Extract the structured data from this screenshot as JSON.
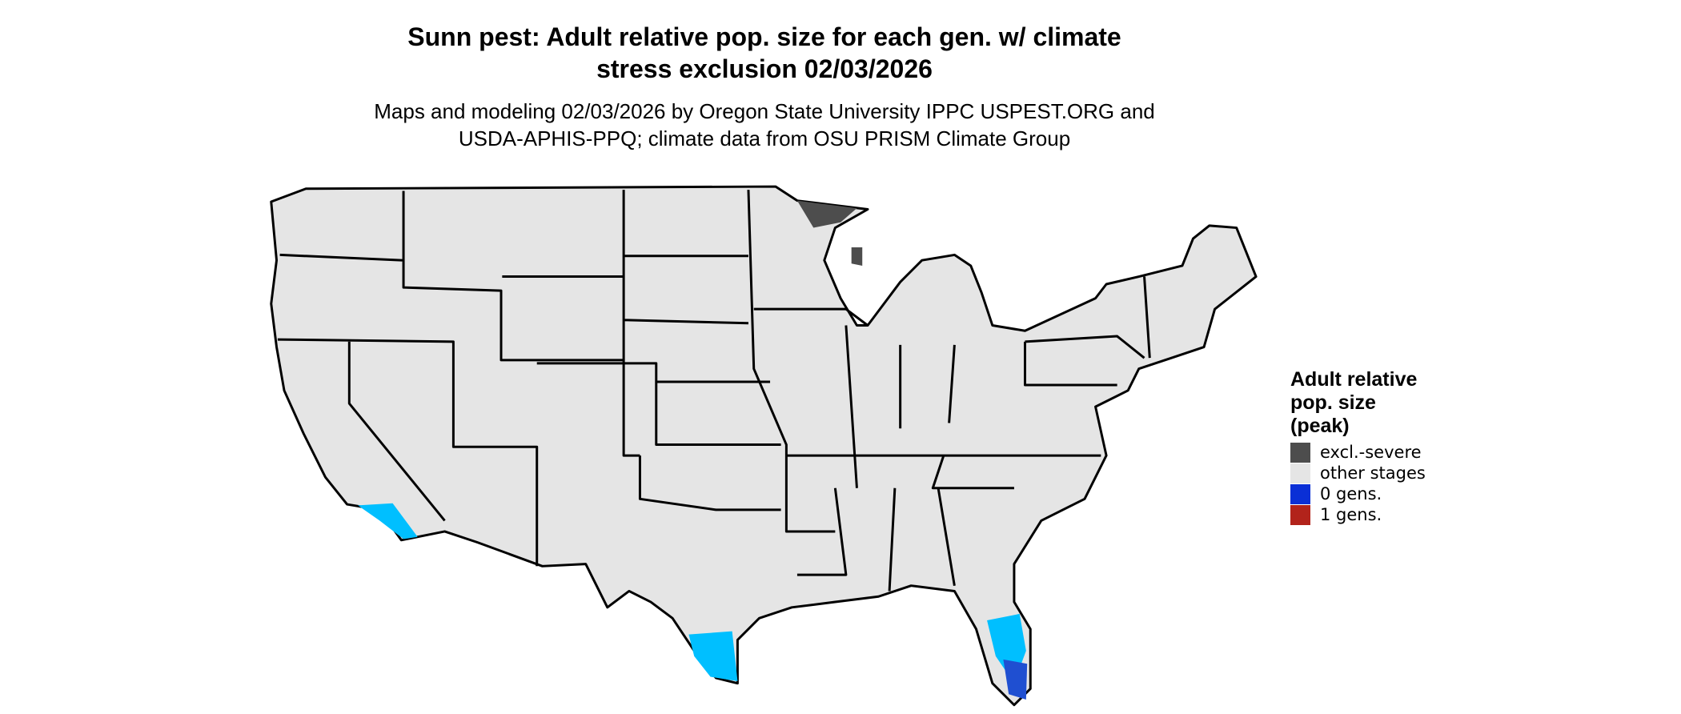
{
  "header": {
    "title": [
      "Sunn pest: Adult relative pop. size for each gen. w/ climate",
      "stress exclusion 02/03/2026"
    ],
    "subtitle": [
      "Maps and modeling 02/03/2026 by Oregon State University IPPC USPEST.ORG and",
      "USDA-APHIS-PPQ; climate data from OSU PRISM Climate Group"
    ]
  },
  "legend": {
    "title": [
      "Adult relative",
      "pop. size",
      "(peak)"
    ],
    "items": [
      {
        "label": "excl.-severe",
        "color": "#4d4d4d"
      },
      {
        "label": "other stages",
        "color": "#e5e5e5"
      },
      {
        "label": "0 gens.",
        "color": "#0a2fd6"
      },
      {
        "label": "1 gens.",
        "color": "#b2231b"
      }
    ]
  }
}
